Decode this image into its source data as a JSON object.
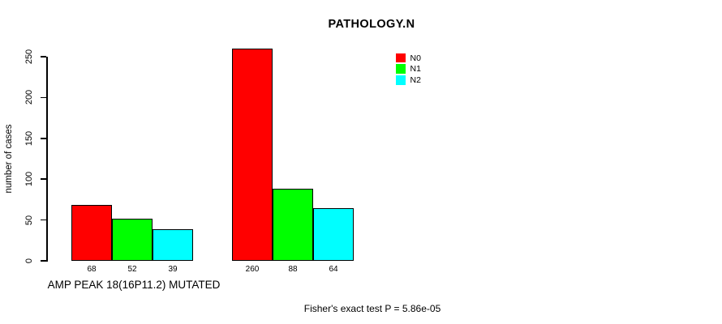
{
  "colors": {
    "background": "#ffffff",
    "text": "#000000",
    "bar_border": "#000000"
  },
  "chart_data": {
    "type": "bar",
    "title": "PATHOLOGY.N",
    "ylabel": "number of cases",
    "xlabel": "AMP PEAK 18(16P11.2) MUTATED",
    "footnote": "Fisher's exact test P = 5.86e-05",
    "ylim": [
      0,
      260
    ],
    "yticks": [
      0,
      50,
      100,
      150,
      200,
      250
    ],
    "grid": false,
    "legend_position": "top-right",
    "legend_entries": [
      "N0",
      "N1",
      "N2"
    ],
    "groups": [
      "group-1",
      "group-2"
    ],
    "series": [
      {
        "name": "N0",
        "color": "#ff0000",
        "values": [
          68,
          260
        ]
      },
      {
        "name": "N1",
        "color": "#00ff00",
        "values": [
          52,
          88
        ]
      },
      {
        "name": "N2",
        "color": "#00ffff",
        "values": [
          39,
          64
        ]
      }
    ],
    "bar_value_labels": [
      [
        68,
        52,
        39
      ],
      [
        260,
        88,
        64
      ]
    ]
  }
}
